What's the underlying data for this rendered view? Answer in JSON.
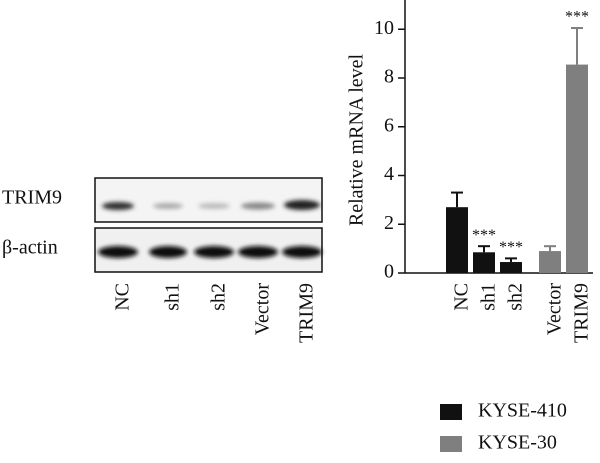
{
  "blot": {
    "rows": [
      "TRIM9",
      "β-actin"
    ],
    "lanes": [
      "NC",
      "sh1",
      "sh2",
      "Vector",
      "TRIM9"
    ]
  },
  "chart_data": {
    "type": "bar",
    "y_label": "Relative mRNA level",
    "categories": [
      "NC",
      "sh1",
      "sh2",
      "Vector",
      "TRIM9"
    ],
    "series": [
      {
        "name": "KYSE-410",
        "color": "#111111",
        "values": [
          2.7,
          0.85,
          0.45,
          null,
          null
        ],
        "errors": [
          0.6,
          0.25,
          0.15,
          null,
          null
        ],
        "significance": [
          null,
          "***",
          "***",
          null,
          null
        ]
      },
      {
        "name": "KYSE-30",
        "color": "#7f7f7f",
        "values": [
          null,
          null,
          null,
          0.9,
          8.55
        ],
        "errors": [
          null,
          null,
          null,
          0.2,
          1.5
        ],
        "significance": [
          null,
          null,
          null,
          null,
          "***"
        ]
      }
    ],
    "ylim": [
      0,
      11.2
    ],
    "yticks": [
      0,
      2,
      4,
      6,
      8,
      10
    ]
  }
}
